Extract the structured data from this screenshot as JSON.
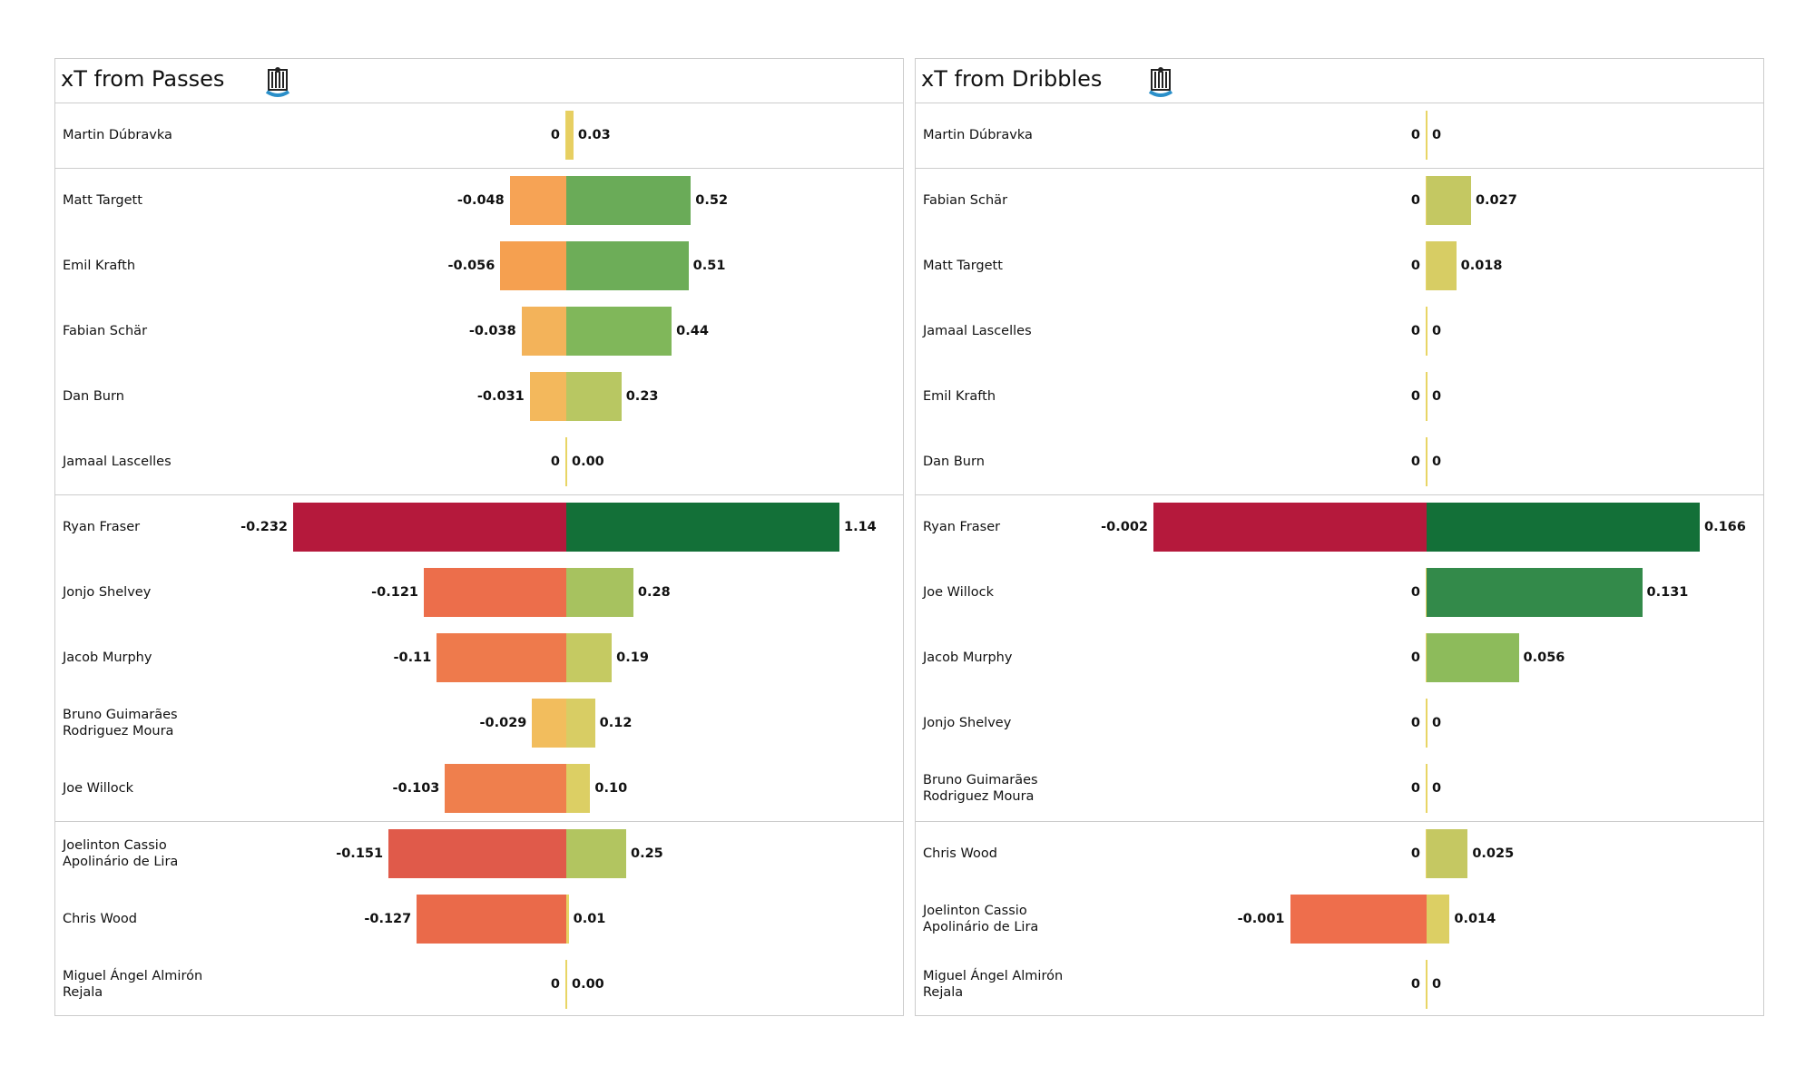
{
  "chart_data": [
    {
      "type": "diverging-bar",
      "title": "xT from Passes",
      "categories": [
        "Martin Dúbravka",
        "Matt Targett",
        "Emil Krafth",
        "Fabian Schär",
        "Dan Burn",
        "Jamaal Lascelles",
        "Ryan Fraser",
        "Jonjo Shelvey",
        "Jacob Murphy",
        "Bruno Guimarães\nRodriguez Moura",
        "Joe Willock",
        "Joelinton Cassio\nApolinário de Lira",
        "Chris Wood",
        "Miguel Ángel Almirón\nRejala"
      ],
      "negative_values": [
        0,
        -0.048,
        -0.056,
        -0.038,
        -0.031,
        0,
        -0.232,
        -0.121,
        -0.11,
        -0.029,
        -0.103,
        -0.151,
        -0.127,
        0
      ],
      "negative_value_labels": [
        "0",
        "-0.048",
        "-0.056",
        "-0.038",
        "-0.031",
        "0",
        "-0.232",
        "-0.121",
        "-0.11",
        "-0.029",
        "-0.103",
        "-0.151",
        "-0.127",
        "0"
      ],
      "negative_colors": [
        "#e8d565",
        "#f6a355",
        "#f5a050",
        "#f3b35a",
        "#f3b85c",
        "#e8d565",
        "#b5193c",
        "#ec6e4b",
        "#ee7a4c",
        "#f2bd5d",
        "#ef7f4d",
        "#e05a4a",
        "#ea6a4a",
        "#e8d565"
      ],
      "positive_values": [
        0.03,
        0.52,
        0.51,
        0.44,
        0.23,
        0,
        1.14,
        0.28,
        0.19,
        0.12,
        0.1,
        0.25,
        0.01,
        0
      ],
      "positive_value_labels": [
        "0.03",
        "0.52",
        "0.51",
        "0.44",
        "0.23",
        "0.00",
        "1.14",
        "0.28",
        "0.19",
        "0.12",
        "0.10",
        "0.25",
        "0.01",
        "0.00"
      ],
      "positive_colors": [
        "#e7cf62",
        "#6aab58",
        "#6dad58",
        "#80b75a",
        "#b8c762",
        "#e8d565",
        "#137038",
        "#a7c25f",
        "#c5ca62",
        "#d8cd64",
        "#dccf64",
        "#b2c560",
        "#e6d465",
        "#e8d565"
      ],
      "group_breaks": [
        1,
        6,
        11
      ]
    },
    {
      "type": "diverging-bar",
      "title": "xT from Dribbles",
      "categories": [
        "Martin Dúbravka",
        "Fabian Schär",
        "Matt Targett",
        "Jamaal Lascelles",
        "Emil Krafth",
        "Dan Burn",
        "Ryan Fraser",
        "Joe Willock",
        "Jacob Murphy",
        "Jonjo Shelvey",
        "Bruno Guimarães\nRodriguez Moura",
        "Chris Wood",
        "Joelinton Cassio\nApolinário de Lira",
        "Miguel Ángel Almirón\nRejala"
      ],
      "negative_values": [
        0,
        0,
        0,
        0,
        0,
        0,
        -0.002,
        0,
        0,
        0,
        0,
        0,
        -0.001,
        0
      ],
      "negative_value_labels": [
        "0",
        "0",
        "0",
        "0",
        "0",
        "0",
        "-0.002",
        "0",
        "0",
        "0",
        "0",
        "0",
        "-0.001",
        "0"
      ],
      "negative_colors": [
        "#e8d565",
        "#e8d565",
        "#e8d565",
        "#e8d565",
        "#e8d565",
        "#e8d565",
        "#b5193c",
        "#e8d565",
        "#e8d565",
        "#e8d565",
        "#e8d565",
        "#e8d565",
        "#ee6e4c",
        "#e8d565"
      ],
      "positive_values": [
        0,
        0.027,
        0.018,
        0,
        0,
        0,
        0.166,
        0.131,
        0.056,
        0,
        0,
        0.025,
        0.014,
        0
      ],
      "positive_value_labels": [
        "0",
        "0.027",
        "0.018",
        "0",
        "0",
        "0",
        "0.166",
        "0.131",
        "0.056",
        "0",
        "0",
        "0.025",
        "0.014",
        "0"
      ],
      "positive_colors": [
        "#e8d565",
        "#c4c862",
        "#d7cd64",
        "#e8d565",
        "#e8d565",
        "#e8d565",
        "#137038",
        "#338a4a",
        "#8dbb5b",
        "#e8d565",
        "#e8d565",
        "#c5c862",
        "#dccf64",
        "#e8d565"
      ],
      "group_breaks": [
        1,
        6,
        11
      ]
    }
  ]
}
